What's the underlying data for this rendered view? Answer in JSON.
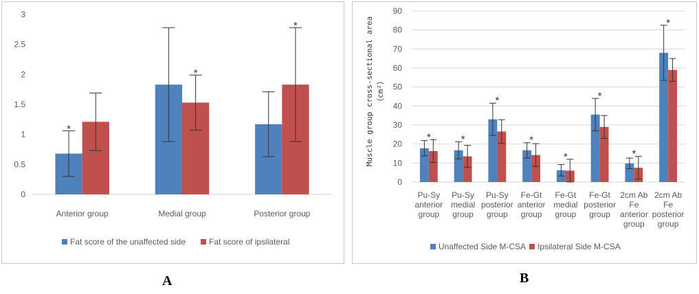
{
  "captions": {
    "a": "A",
    "b": "B"
  },
  "chart_data": [
    {
      "type": "bar",
      "panel": "A",
      "title": "",
      "xlabel": "",
      "ylabel": "",
      "ylim": [
        0,
        3
      ],
      "yticks": [
        "0",
        "0.5",
        "1",
        "1.5",
        "2",
        "2.5",
        "3"
      ],
      "categories": [
        "Anterior group",
        "Medial group",
        "Posterior group"
      ],
      "series": [
        {
          "name": "Fat score of the unaffected side",
          "color": "#4f81bd",
          "values": [
            0.68,
            1.83,
            1.17
          ],
          "errors": [
            0.38,
            0.95,
            0.54
          ]
        },
        {
          "name": "Fat score of ipsilateral",
          "color": "#c0504d",
          "values": [
            1.21,
            1.53,
            1.83
          ],
          "errors": [
            0.48,
            0.46,
            0.95
          ]
        }
      ],
      "significance": [
        {
          "category": 0,
          "over_series": 0,
          "label": "*"
        },
        {
          "category": 1,
          "over_series": 1,
          "label": "*"
        },
        {
          "category": 2,
          "over_series": 1,
          "label": "*"
        }
      ],
      "grid": false,
      "legend": "bottom"
    },
    {
      "type": "bar",
      "panel": "B",
      "title": "",
      "xlabel": "",
      "ylabel_lines": [
        "Muscle group cross-sectional area",
        "（cm²）"
      ],
      "ylim": [
        0,
        90
      ],
      "yticks": [
        "0",
        "10",
        "20",
        "30",
        "40",
        "50",
        "60",
        "70",
        "80",
        "90"
      ],
      "categories": [
        [
          "Pu-Sy",
          "anterior",
          "group"
        ],
        [
          "Pu-Sy",
          "medial",
          "group"
        ],
        [
          "Pu-Sy",
          "posterior",
          "group"
        ],
        [
          "Fe-Gt",
          "anterior",
          "group"
        ],
        [
          "Fe-Gt",
          "medial",
          "group"
        ],
        [
          "Fe-Gt",
          "posterior",
          "group"
        ],
        [
          "2cm Ab",
          "Fe",
          "anterior",
          "group"
        ],
        [
          "2cm Ab",
          "Fe",
          "posterior",
          "group"
        ]
      ],
      "series": [
        {
          "name": "Unaffected Side M-CSA",
          "color": "#4f81bd",
          "values": [
            17.8,
            16.7,
            33.0,
            16.7,
            6.2,
            35.5,
            9.8,
            68.0
          ],
          "errors": [
            4.0,
            4.5,
            8.5,
            4.0,
            3.0,
            8.5,
            2.8,
            14.5
          ]
        },
        {
          "name": "Ipsilateral Side M-CSA",
          "color": "#c0504d",
          "values": [
            16.3,
            13.5,
            26.6,
            14.2,
            6.0,
            29.0,
            7.5,
            59.0
          ],
          "errors": [
            6.0,
            5.8,
            6.2,
            6.0,
            6.0,
            6.0,
            6.0,
            6.0
          ]
        }
      ],
      "significance": [
        {
          "category": 0,
          "label": "*"
        },
        {
          "category": 1,
          "label": "*"
        },
        {
          "category": 2,
          "label": "*"
        },
        {
          "category": 3,
          "label": "*"
        },
        {
          "category": 4,
          "label": "*"
        },
        {
          "category": 5,
          "label": "*"
        },
        {
          "category": 6,
          "label": "*"
        },
        {
          "category": 7,
          "label": "*"
        }
      ],
      "grid": true,
      "legend": "bottom"
    }
  ]
}
